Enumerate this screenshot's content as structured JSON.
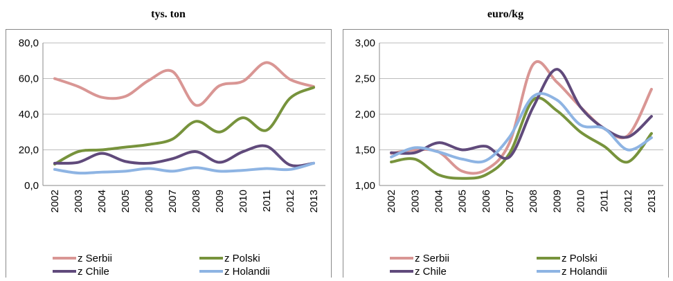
{
  "chart_data": [
    {
      "type": "line",
      "title": "tys. ton",
      "categories": [
        "2002",
        "2003",
        "2004",
        "2005",
        "2006",
        "2007",
        "2008",
        "2009",
        "2010",
        "2011",
        "2012",
        "2013"
      ],
      "ylim": [
        0,
        80
      ],
      "yticks": [
        {
          "value": 0,
          "label": "0,0"
        },
        {
          "value": 20,
          "label": "20,0"
        },
        {
          "value": 40,
          "label": "40,0"
        },
        {
          "value": 60,
          "label": "60,0"
        },
        {
          "value": 80,
          "label": "80,0"
        }
      ],
      "grid": true,
      "series": [
        {
          "name": "z Serbii",
          "color": "#d99694",
          "values": [
            60,
            55.5,
            49.5,
            50,
            59,
            64,
            45,
            56,
            58.5,
            69,
            59.5,
            55.5
          ]
        },
        {
          "name": "z Polski",
          "color": "#77933c",
          "values": [
            12,
            19,
            20,
            21.5,
            23,
            26,
            36,
            30,
            38,
            31,
            49,
            55
          ]
        },
        {
          "name": "z Chile",
          "color": "#604a7b",
          "values": [
            12.5,
            13,
            18,
            13.5,
            12.5,
            15,
            19,
            13,
            19,
            22,
            11.5,
            12.5
          ]
        },
        {
          "name": "z Holandii",
          "color": "#8eb4e3",
          "values": [
            9,
            7,
            7.5,
            8,
            9.5,
            8,
            10,
            8,
            8.5,
            9.5,
            9,
            12.5
          ]
        }
      ]
    },
    {
      "type": "line",
      "title": "euro/kg",
      "categories": [
        "2002",
        "2003",
        "2004",
        "2005",
        "2006",
        "2007",
        "2008",
        "2009",
        "2010",
        "2011",
        "2012",
        "2013"
      ],
      "ylim": [
        1,
        3
      ],
      "yticks": [
        {
          "value": 1,
          "label": "1,00"
        },
        {
          "value": 1.5,
          "label": "1,50"
        },
        {
          "value": 2,
          "label": "2,00"
        },
        {
          "value": 2.5,
          "label": "2,50"
        },
        {
          "value": 3,
          "label": "3,00"
        }
      ],
      "grid": true,
      "series": [
        {
          "name": "z Serbii",
          "color": "#d99694",
          "values": [
            1.45,
            1.5,
            1.47,
            1.2,
            1.22,
            1.6,
            2.7,
            2.45,
            2.1,
            1.8,
            1.7,
            2.35
          ]
        },
        {
          "name": "z Polski",
          "color": "#77933c",
          "values": [
            1.33,
            1.37,
            1.15,
            1.1,
            1.15,
            1.45,
            2.2,
            2.05,
            1.75,
            1.55,
            1.33,
            1.73
          ]
        },
        {
          "name": "z Chile",
          "color": "#604a7b",
          "values": [
            1.46,
            1.46,
            1.6,
            1.5,
            1.55,
            1.4,
            2.1,
            2.63,
            2.1,
            1.8,
            1.68,
            1.97
          ]
        },
        {
          "name": "z Holandii",
          "color": "#8eb4e3",
          "values": [
            1.4,
            1.53,
            1.47,
            1.37,
            1.35,
            1.68,
            2.25,
            2.2,
            1.85,
            1.8,
            1.5,
            1.67
          ]
        }
      ]
    }
  ]
}
